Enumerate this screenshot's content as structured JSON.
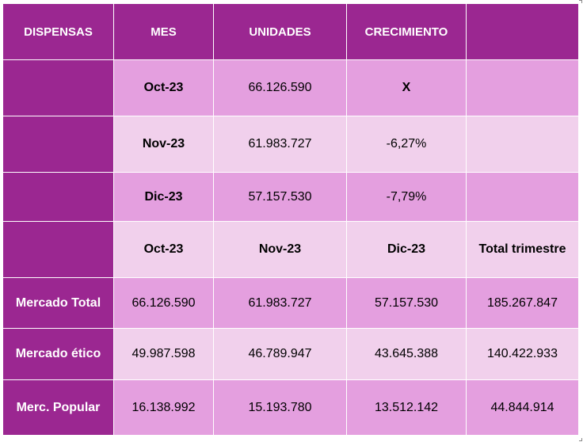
{
  "header": {
    "col1": "DISPENSAS",
    "col2": "MES",
    "col3": "UNIDADES",
    "col4": "CRECIMIENTO",
    "col5": ""
  },
  "monthly": [
    {
      "mes": "Oct-23",
      "unidades": "66.126.590",
      "crecimiento": "X"
    },
    {
      "mes": "Nov-23",
      "unidades": "61.983.727",
      "crecimiento": "-6,27%"
    },
    {
      "mes": "Dic-23",
      "unidades": "57.157.530",
      "crecimiento": "-7,79%"
    }
  ],
  "quarter_header": {
    "c1": "Oct-23",
    "c2": "Nov-23",
    "c3": "Dic-23",
    "c4": "Total trimestre"
  },
  "markets": [
    {
      "label": "Mercado Total",
      "oct": "66.126.590",
      "nov": "61.983.727",
      "dic": "57.157.530",
      "total": "185.267.847"
    },
    {
      "label": "Mercado ético",
      "oct": "49.987.598",
      "nov": "46.789.947",
      "dic": "43.645.388",
      "total": "140.422.933"
    },
    {
      "label": "Merc. Popular",
      "oct": "16.138.992",
      "nov": "15.193.780",
      "dic": "13.512.142",
      "total": "44.844.914"
    }
  ]
}
